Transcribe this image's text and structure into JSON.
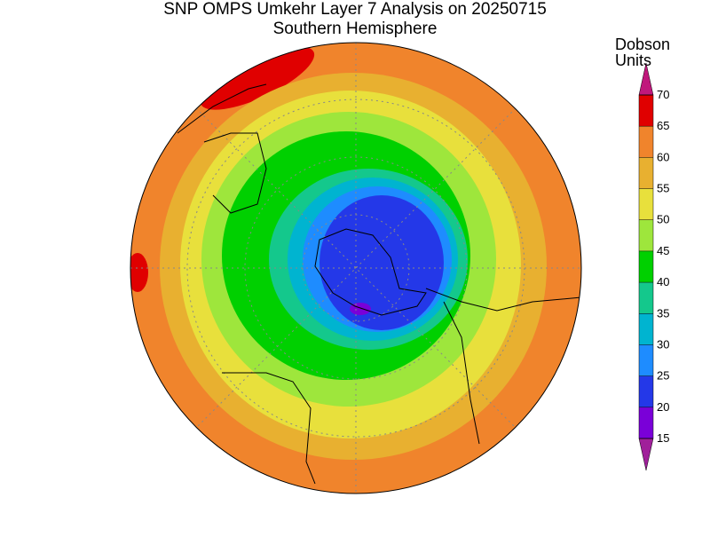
{
  "header": {
    "title": "SNP OMPS Umkehr Layer 7 Analysis on 20250715",
    "subtitle": "Southern Hemisphere"
  },
  "legend": {
    "label_lines": [
      "Dobson",
      "Units"
    ],
    "ticks": [
      15,
      20,
      25,
      30,
      35,
      40,
      45,
      50,
      55,
      60,
      65,
      70
    ],
    "under_color": "#a0209a",
    "colors": [
      "#7a00d8",
      "#2438e8",
      "#1e8cff",
      "#00b4d0",
      "#14c88c",
      "#00d000",
      "#9ee63c",
      "#e8e03c",
      "#e8b030",
      "#f0842c",
      "#e00000"
    ],
    "over_color": "#c0187c"
  }
}
